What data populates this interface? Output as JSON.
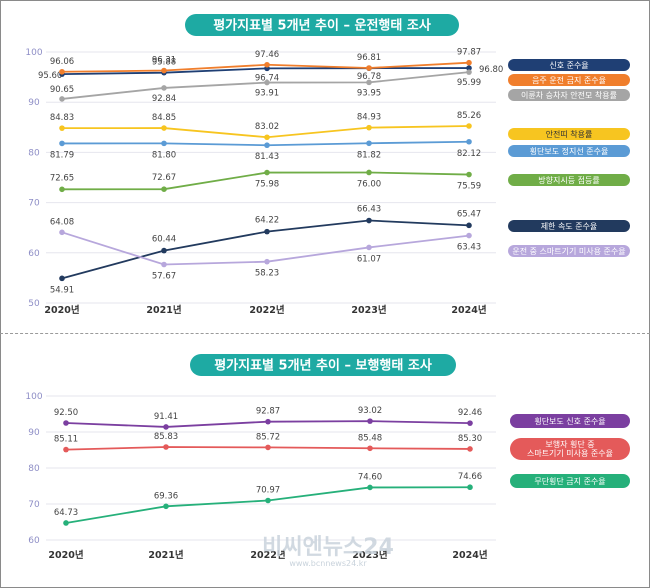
{
  "chart_data": [
    {
      "type": "line",
      "title": "평가지표별 5개년 추이 – 운전행태 조사",
      "categories": [
        "2020년",
        "2021년",
        "2022년",
        "2023년",
        "2024년"
      ],
      "ylim": [
        50,
        100
      ],
      "yticks": [
        50,
        60,
        70,
        80,
        90,
        100
      ],
      "series": [
        {
          "name": "신호 준수율",
          "color": "#1f3f74",
          "values": [
            95.6,
            95.88,
            96.74,
            96.78,
            96.8
          ]
        },
        {
          "name": "음주 운전 금지 준수율",
          "color": "#f07e2c",
          "values": [
            96.06,
            96.31,
            97.46,
            96.81,
            97.87
          ]
        },
        {
          "name": "이륜차 승차자 안전모 착용률",
          "color": "#a5a5a5",
          "values": [
            90.65,
            92.84,
            93.91,
            93.95,
            95.99
          ]
        },
        {
          "name": "안전띠 착용률",
          "color": "#f7c520",
          "values": [
            84.83,
            84.85,
            83.02,
            84.93,
            85.26
          ]
        },
        {
          "name": "횡단보도 정지선 준수율",
          "color": "#5b9bd5",
          "values": [
            81.79,
            81.8,
            81.43,
            81.82,
            82.12
          ]
        },
        {
          "name": "방향지시등 점등률",
          "color": "#70ad47",
          "values": [
            72.65,
            72.67,
            75.98,
            76.0,
            75.59
          ]
        },
        {
          "name": "제한 속도 준수율",
          "color": "#223a5e",
          "values": [
            54.91,
            60.44,
            64.22,
            66.43,
            65.47
          ]
        },
        {
          "name": "운전 중 스마트기기 미사용 준수율",
          "color": "#b7a7dc",
          "values": [
            64.08,
            57.67,
            58.23,
            61.07,
            63.43
          ]
        }
      ],
      "legend_placement": "right"
    },
    {
      "type": "line",
      "title": "평가지표별 5개년 추이 – 보행행태 조사",
      "categories": [
        "2020년",
        "2021년",
        "2022년",
        "2023년",
        "2024년"
      ],
      "ylim": [
        60,
        100
      ],
      "yticks": [
        60,
        70,
        80,
        90,
        100
      ],
      "series": [
        {
          "name": "횡단보도 신호 준수율",
          "color": "#7b3fa0",
          "values": [
            92.5,
            91.41,
            92.87,
            93.02,
            92.46
          ]
        },
        {
          "name": "보행자 횡단 중 스마트기기 미사용 준수율",
          "color": "#e45a5a",
          "values": [
            85.11,
            85.83,
            85.72,
            85.48,
            85.3
          ]
        },
        {
          "name": "무단횡단 금지 준수율",
          "color": "#26b07a",
          "values": [
            64.73,
            69.36,
            70.97,
            74.6,
            74.66
          ]
        }
      ],
      "legend_placement": "right"
    }
  ],
  "watermark": {
    "text": "비씨엔뉴스24",
    "url": "www.bcnnews24.kr"
  }
}
